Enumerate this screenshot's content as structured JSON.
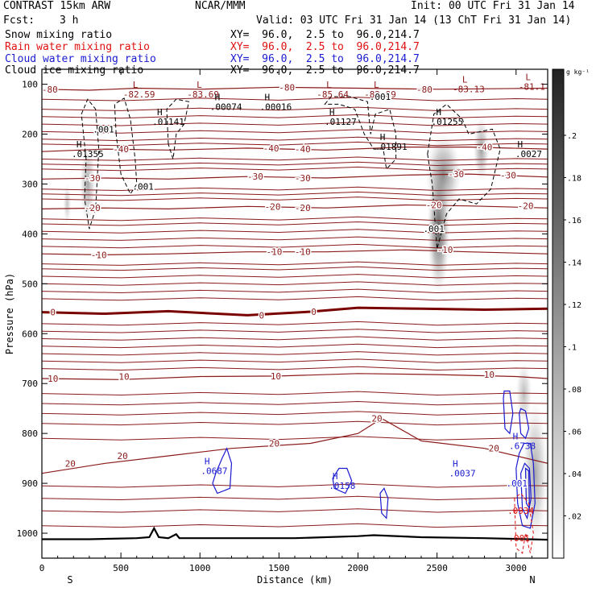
{
  "header": {
    "title": "CONTRAST 15km ARW",
    "org": "NCAR/MMM",
    "init": "Init: 00 UTC Fri 31 Jan 14",
    "fcst_label": "Fcst:",
    "fcst_value": "3 h",
    "valid": "Valid: 03 UTC Fri 31 Jan 14 (13 ChT Fri 31 Jan 14)",
    "fields": [
      {
        "name": "Snow mixing ratio",
        "xy": "XY=  96.0,  2.5 to  96.0,214.7",
        "color": "#000000"
      },
      {
        "name": "Rain water mixing ratio",
        "xy": "XY=  96.0,  2.5 to  96.0,214.7",
        "color": "#e01010"
      },
      {
        "name": "Cloud water mixing ratio",
        "xy": "XY=  96.0,  2.5 to  96.0,214.7",
        "color": "#1a1ad0"
      },
      {
        "name": "Cloud ice mixing ratio",
        "xy": "XY=  96.0,  2.5 to  96.0,214.7",
        "color": "#000000"
      }
    ]
  },
  "colorbar": {
    "unit": "g kg⁻¹",
    "ticks": [
      ".2",
      ".18",
      ".16",
      ".14",
      ".12",
      ".1",
      ".08",
      ".06",
      ".04",
      ".02"
    ]
  },
  "chart_data": {
    "type": "cross-section",
    "xlabel": "Distance (km)",
    "ylabel": "Pressure (hPa)",
    "xlim": [
      0,
      3200
    ],
    "ylim": [
      1050,
      70
    ],
    "xticks": [
      "0",
      "500",
      "1000",
      "1500",
      "2000",
      "2500",
      "3000"
    ],
    "xtick_values": [
      0,
      500,
      1000,
      1500,
      2000,
      2500,
      3000
    ],
    "yticks": [
      "100",
      "200",
      "300",
      "400",
      "500",
      "600",
      "700",
      "800",
      "900",
      "1000"
    ],
    "ytick_values": [
      100,
      200,
      300,
      400,
      500,
      600,
      700,
      800,
      900,
      1000
    ],
    "endpoint_labels": {
      "left": "S",
      "right": "N"
    },
    "temperature_isotherms": [
      {
        "t": -80,
        "labels": [
          "-80",
          "-80",
          "-80"
        ]
      },
      {
        "t": -40,
        "labels": [
          "-40",
          "-40",
          "-40",
          "-40"
        ]
      },
      {
        "t": -30,
        "labels": [
          "-30",
          "-30",
          "-30",
          "-30",
          "-30"
        ]
      },
      {
        "t": -20,
        "labels": [
          "-20",
          "-20",
          "-20",
          "-20",
          "-20"
        ]
      },
      {
        "t": -10,
        "labels": [
          "-10",
          "-10",
          "-10",
          "-10"
        ]
      },
      {
        "t": 0,
        "labels": [
          "0",
          "0",
          "0"
        ]
      },
      {
        "t": 10,
        "labels": [
          "10",
          "10",
          "10",
          "10"
        ]
      },
      {
        "t": 20,
        "labels": [
          "20",
          "20",
          "20",
          "20",
          "20"
        ]
      }
    ],
    "lows": [
      {
        "x": 615,
        "p": 110,
        "label": "-82.59"
      },
      {
        "x": 1020,
        "p": 110,
        "label": "-83.69"
      },
      {
        "x": 1840,
        "p": 110,
        "label": "-85.64"
      },
      {
        "x": 2140,
        "p": 110,
        "label": "-82.89"
      },
      {
        "x": 2700,
        "p": 100,
        "label": "-83.13"
      },
      {
        "x": 3100,
        "p": 95,
        "label": "-81.1"
      }
    ],
    "cloud_ice_highs": [
      {
        "x": 1165,
        "p": 140,
        "label": ".00074"
      },
      {
        "x": 1480,
        "p": 140,
        "label": ".00016"
      },
      {
        "x": 800,
        "p": 170,
        "label": ".01141"
      },
      {
        "x": 1890,
        "p": 170,
        "label": ".01127"
      },
      {
        "x": 2565,
        "p": 170,
        "label": ".01255"
      },
      {
        "x": 290,
        "p": 235,
        "label": ".01355"
      },
      {
        "x": 2210,
        "p": 220,
        "label": ".01891"
      },
      {
        "x": 3080,
        "p": 235,
        "label": ".0027"
      }
    ],
    "cloud_ice_labels": [
      {
        "x": 390,
        "p": 190,
        "label": ".001"
      },
      {
        "x": 640,
        "p": 305,
        "label": ".001"
      },
      {
        "x": 2140,
        "p": 125,
        "label": ".001"
      },
      {
        "x": 2480,
        "p": 390,
        "label": ".001"
      }
    ],
    "cloud_water_highs": [
      {
        "x": 1090,
        "p": 870,
        "label": ".0687"
      },
      {
        "x": 1900,
        "p": 900,
        "label": ".0158"
      },
      {
        "x": 2660,
        "p": 875,
        "label": ".0037"
      },
      {
        "x": 3040,
        "p": 820,
        "label": ".6738"
      }
    ],
    "cloud_water_labels": [
      {
        "x": 3005,
        "p": 900,
        "label": ".001"
      }
    ],
    "rain_labels": [
      {
        "x": 3030,
        "p": 955,
        "label": ".0934"
      },
      {
        "x": 3020,
        "p": 1010,
        "label": ".001"
      }
    ],
    "snow_max": 0.2
  }
}
